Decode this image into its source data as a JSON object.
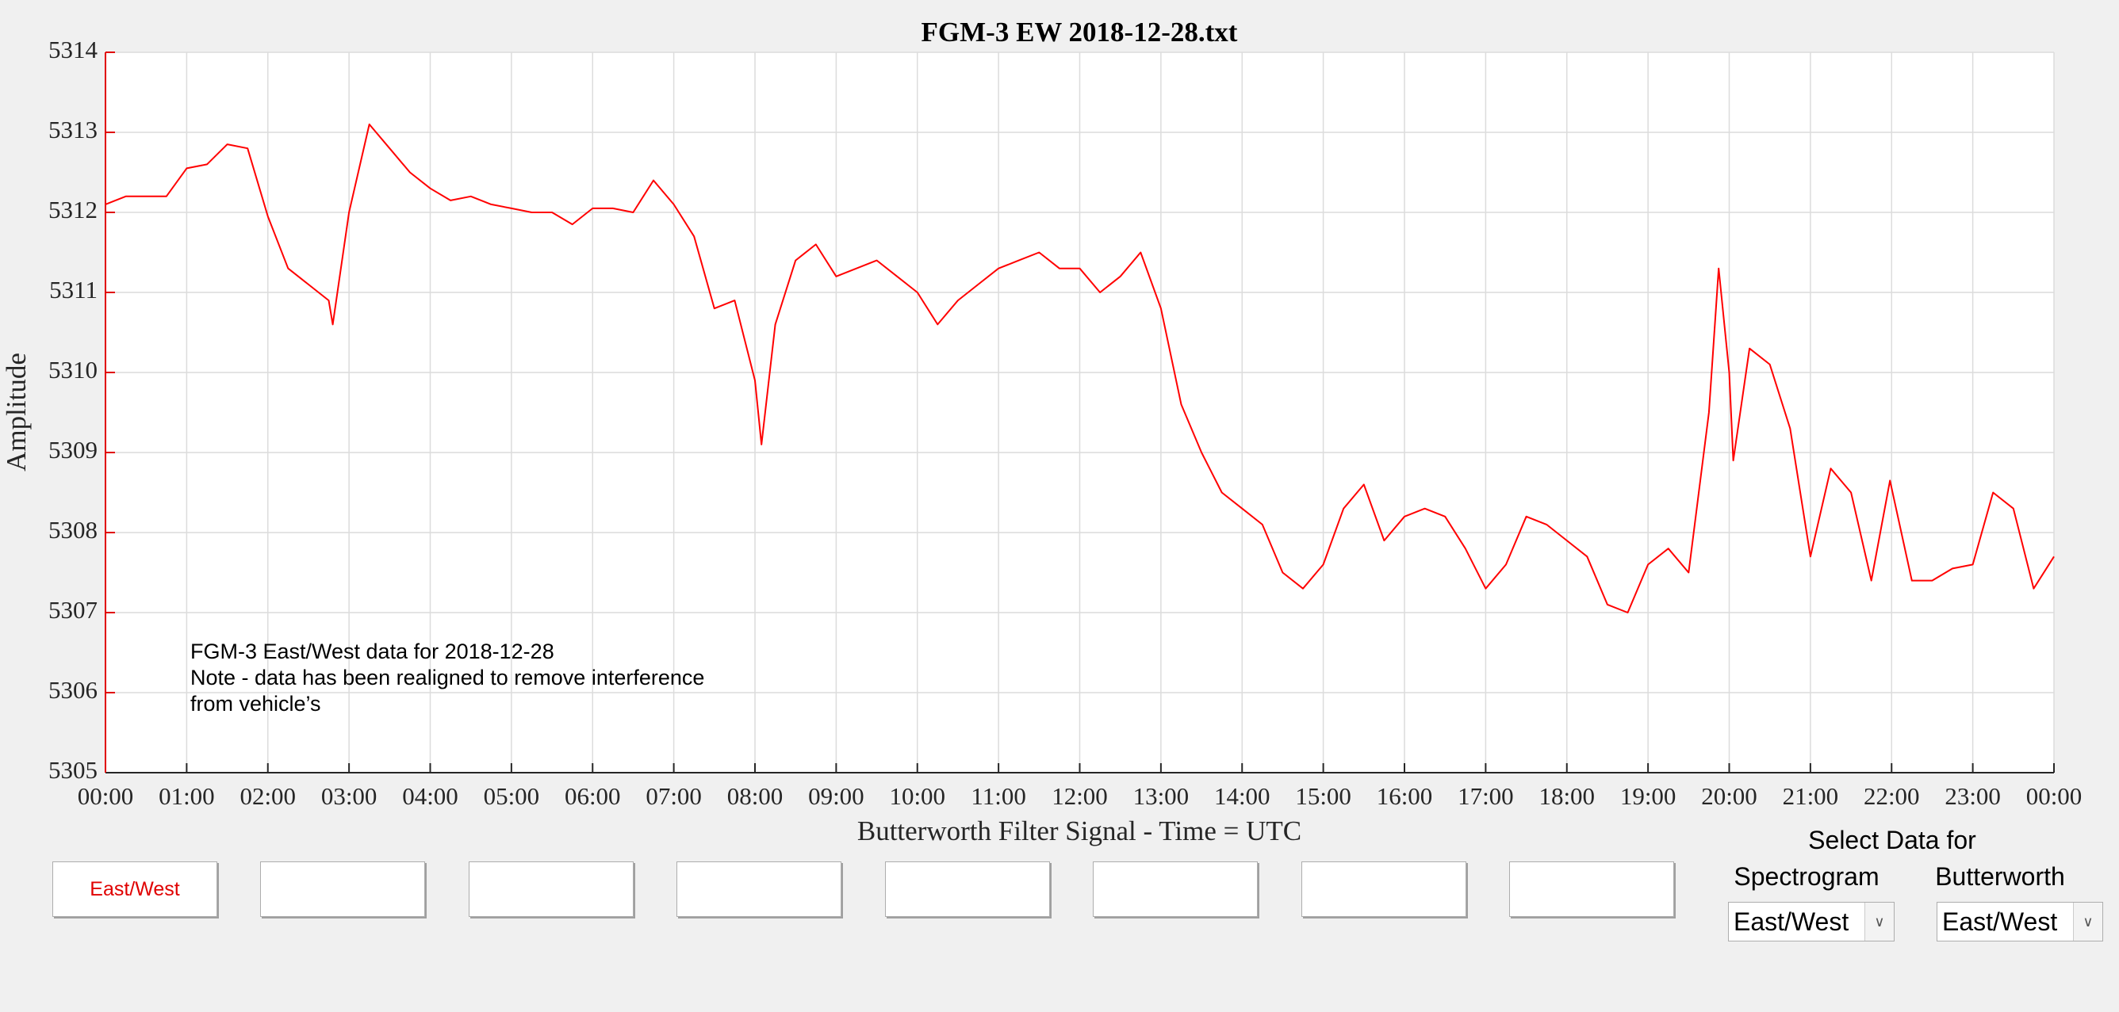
{
  "chart_data": {
    "type": "line",
    "title": "FGM-3 EW 2018-12-28.txt",
    "xlabel": "Butterworth Filter Signal - Time = UTC",
    "ylabel": "Amplitude",
    "annotation": [
      "FGM-3 East/West data for 2018-12-28",
      "Note - data has been realigned to remove interference",
      "from vehicle’s"
    ],
    "color": "#ff0000",
    "grid": true,
    "x": [
      0,
      0.25,
      0.5,
      0.75,
      1,
      1.25,
      1.5,
      1.75,
      2,
      2.25,
      2.5,
      2.75,
      2.8,
      3,
      3.25,
      3.5,
      3.75,
      4,
      4.25,
      4.5,
      4.75,
      5,
      5.25,
      5.5,
      5.75,
      6,
      6.25,
      6.5,
      6.75,
      7,
      7.25,
      7.5,
      7.75,
      8,
      8.08,
      8.25,
      8.5,
      8.75,
      9,
      9.25,
      9.5,
      9.75,
      10,
      10.25,
      10.5,
      10.75,
      11,
      11.25,
      11.5,
      11.75,
      12,
      12.25,
      12.5,
      12.75,
      13,
      13.25,
      13.5,
      13.75,
      14,
      14.25,
      14.5,
      14.75,
      15,
      15.25,
      15.5,
      15.75,
      16,
      16.25,
      16.5,
      16.75,
      17,
      17.25,
      17.5,
      17.75,
      18,
      18.25,
      18.5,
      18.75,
      19,
      19.25,
      19.5,
      19.75,
      19.87,
      20,
      20.05,
      20.25,
      20.5,
      20.75,
      21,
      21.25,
      21.5,
      21.75,
      21.98,
      22.25,
      22.5,
      22.75,
      23,
      23.25,
      23.5,
      23.75,
      24
    ],
    "values": [
      5312.1,
      5312.2,
      5312.2,
      5312.2,
      5312.55,
      5312.6,
      5312.85,
      5312.8,
      5311.95,
      5311.3,
      5311.1,
      5310.9,
      5310.6,
      5312.0,
      5313.1,
      5312.8,
      5312.5,
      5312.3,
      5312.15,
      5312.2,
      5312.1,
      5312.05,
      5312.0,
      5312.0,
      5311.85,
      5312.05,
      5312.05,
      5312.0,
      5312.4,
      5312.1,
      5311.7,
      5310.8,
      5310.9,
      5309.9,
      5309.1,
      5310.6,
      5311.4,
      5311.6,
      5311.2,
      5311.3,
      5311.4,
      5311.2,
      5311.0,
      5310.6,
      5310.9,
      5311.1,
      5311.3,
      5311.4,
      5311.5,
      5311.3,
      5311.3,
      5311.0,
      5311.2,
      5311.5,
      5310.8,
      5309.6,
      5309.0,
      5308.5,
      5308.3,
      5308.1,
      5307.5,
      5307.3,
      5307.6,
      5308.3,
      5308.6,
      5307.9,
      5308.2,
      5308.3,
      5308.2,
      5307.8,
      5307.3,
      5307.6,
      5308.2,
      5308.1,
      5307.9,
      5307.7,
      5307.1,
      5307.0,
      5307.6,
      5307.8,
      5307.5,
      5309.5,
      5311.3,
      5310.0,
      5308.9,
      5310.3,
      5310.1,
      5309.3,
      5307.7,
      5308.8,
      5308.5,
      5307.4,
      5308.65,
      5307.4,
      5307.4,
      5307.55,
      5307.6,
      5308.5,
      5308.3,
      5307.3,
      5307.7
    ],
    "xlim": [
      0,
      24
    ],
    "xticks": [
      {
        "value": 0,
        "label": "00:00"
      },
      {
        "value": 1,
        "label": "01:00"
      },
      {
        "value": 2,
        "label": "02:00"
      },
      {
        "value": 3,
        "label": "03:00"
      },
      {
        "value": 4,
        "label": "04:00"
      },
      {
        "value": 5,
        "label": "05:00"
      },
      {
        "value": 6,
        "label": "06:00"
      },
      {
        "value": 7,
        "label": "07:00"
      },
      {
        "value": 8,
        "label": "08:00"
      },
      {
        "value": 9,
        "label": "09:00"
      },
      {
        "value": 10,
        "label": "10:00"
      },
      {
        "value": 11,
        "label": "11:00"
      },
      {
        "value": 12,
        "label": "12:00"
      },
      {
        "value": 13,
        "label": "13:00"
      },
      {
        "value": 14,
        "label": "14:00"
      },
      {
        "value": 15,
        "label": "15:00"
      },
      {
        "value": 16,
        "label": "16:00"
      },
      {
        "value": 17,
        "label": "17:00"
      },
      {
        "value": 18,
        "label": "18:00"
      },
      {
        "value": 19,
        "label": "19:00"
      },
      {
        "value": 20,
        "label": "20:00"
      },
      {
        "value": 21,
        "label": "21:00"
      },
      {
        "value": 22,
        "label": "22:00"
      },
      {
        "value": 23,
        "label": "23:00"
      },
      {
        "value": 24,
        "label": "00:00"
      }
    ],
    "ylim": [
      5305,
      5314
    ],
    "yticks": [
      5305,
      5306,
      5307,
      5308,
      5309,
      5310,
      5311,
      5312,
      5313,
      5314
    ]
  },
  "controls": {
    "buttons": [
      "East/West"
    ],
    "select_label": "Select Data for",
    "spectrogram": {
      "label": "Spectrogram",
      "value": "East/West"
    },
    "butterworth": {
      "label": "Butterworth",
      "value": "East/West"
    }
  }
}
